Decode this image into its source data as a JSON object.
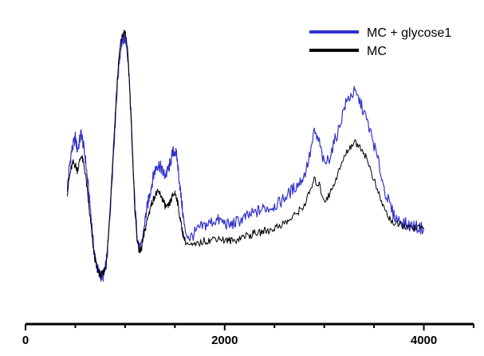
{
  "chart_data": {
    "type": "line",
    "x_ticks": [
      "0",
      "2000",
      "4000"
    ],
    "xlim": [
      0,
      4500
    ],
    "ylim": [
      0,
      1
    ],
    "grid": false,
    "legend_position": "top-right",
    "series": [
      {
        "name": "MC + glycose1",
        "color": "#3333cc",
        "x": [
          420,
          440,
          460,
          480,
          500,
          520,
          540,
          560,
          580,
          600,
          620,
          640,
          660,
          680,
          700,
          720,
          740,
          760,
          780,
          800,
          820,
          840,
          860,
          880,
          900,
          920,
          940,
          960,
          980,
          1000,
          1020,
          1040,
          1060,
          1080,
          1100,
          1120,
          1140,
          1160,
          1180,
          1200,
          1220,
          1240,
          1260,
          1280,
          1300,
          1320,
          1340,
          1360,
          1380,
          1400,
          1420,
          1440,
          1460,
          1480,
          1500,
          1520,
          1540,
          1560,
          1580,
          1600,
          1650,
          1700,
          1750,
          1800,
          1850,
          1900,
          1950,
          2000,
          2050,
          2100,
          2150,
          2200,
          2250,
          2300,
          2350,
          2400,
          2450,
          2500,
          2550,
          2600,
          2650,
          2700,
          2750,
          2800,
          2850,
          2900,
          2950,
          3000,
          3050,
          3100,
          3150,
          3200,
          3250,
          3300,
          3350,
          3400,
          3450,
          3500,
          3550,
          3600,
          3650,
          3700,
          3750,
          3800,
          3850,
          3900,
          3950,
          4000
        ],
        "y": [
          0.38,
          0.46,
          0.52,
          0.55,
          0.58,
          0.53,
          0.56,
          0.6,
          0.55,
          0.5,
          0.42,
          0.34,
          0.26,
          0.16,
          0.1,
          0.06,
          0.04,
          0.03,
          0.03,
          0.05,
          0.11,
          0.22,
          0.36,
          0.5,
          0.64,
          0.78,
          0.88,
          0.95,
          0.97,
          0.98,
          0.93,
          0.82,
          0.66,
          0.46,
          0.3,
          0.2,
          0.14,
          0.14,
          0.19,
          0.25,
          0.3,
          0.34,
          0.38,
          0.42,
          0.45,
          0.47,
          0.47,
          0.46,
          0.44,
          0.43,
          0.44,
          0.46,
          0.49,
          0.52,
          0.53,
          0.5,
          0.43,
          0.35,
          0.28,
          0.21,
          0.18,
          0.2,
          0.22,
          0.23,
          0.24,
          0.25,
          0.25,
          0.24,
          0.23,
          0.24,
          0.25,
          0.26,
          0.27,
          0.28,
          0.29,
          0.3,
          0.3,
          0.31,
          0.32,
          0.34,
          0.36,
          0.38,
          0.4,
          0.43,
          0.5,
          0.6,
          0.56,
          0.47,
          0.5,
          0.56,
          0.62,
          0.7,
          0.74,
          0.76,
          0.73,
          0.68,
          0.62,
          0.55,
          0.47,
          0.38,
          0.32,
          0.27,
          0.25,
          0.24,
          0.23,
          0.23,
          0.22,
          0.22
        ]
      },
      {
        "name": "MC",
        "color": "#000000",
        "x": [
          420,
          440,
          460,
          480,
          500,
          520,
          540,
          560,
          580,
          600,
          620,
          640,
          660,
          680,
          700,
          720,
          740,
          760,
          780,
          800,
          820,
          840,
          860,
          880,
          900,
          920,
          940,
          960,
          980,
          1000,
          1020,
          1040,
          1060,
          1080,
          1100,
          1120,
          1140,
          1160,
          1180,
          1200,
          1220,
          1240,
          1260,
          1280,
          1300,
          1320,
          1340,
          1360,
          1380,
          1400,
          1420,
          1440,
          1460,
          1480,
          1500,
          1520,
          1540,
          1560,
          1580,
          1600,
          1650,
          1700,
          1750,
          1800,
          1850,
          1900,
          1950,
          2000,
          2050,
          2100,
          2150,
          2200,
          2250,
          2300,
          2350,
          2400,
          2450,
          2500,
          2550,
          2600,
          2650,
          2700,
          2750,
          2800,
          2850,
          2900,
          2950,
          3000,
          3050,
          3100,
          3150,
          3200,
          3250,
          3300,
          3350,
          3400,
          3450,
          3500,
          3550,
          3600,
          3650,
          3700,
          3750,
          3800,
          3850,
          3900,
          3950,
          4000
        ],
        "y": [
          0.36,
          0.42,
          0.46,
          0.48,
          0.47,
          0.45,
          0.48,
          0.51,
          0.48,
          0.44,
          0.37,
          0.29,
          0.22,
          0.14,
          0.09,
          0.06,
          0.04,
          0.03,
          0.04,
          0.06,
          0.12,
          0.24,
          0.38,
          0.52,
          0.66,
          0.8,
          0.9,
          0.97,
          0.99,
          1.0,
          0.95,
          0.83,
          0.66,
          0.45,
          0.28,
          0.18,
          0.13,
          0.13,
          0.17,
          0.21,
          0.25,
          0.28,
          0.31,
          0.33,
          0.35,
          0.36,
          0.36,
          0.35,
          0.33,
          0.31,
          0.3,
          0.31,
          0.33,
          0.35,
          0.36,
          0.34,
          0.29,
          0.24,
          0.2,
          0.17,
          0.15,
          0.15,
          0.16,
          0.17,
          0.17,
          0.18,
          0.18,
          0.17,
          0.17,
          0.17,
          0.18,
          0.19,
          0.19,
          0.2,
          0.2,
          0.21,
          0.21,
          0.22,
          0.23,
          0.24,
          0.25,
          0.27,
          0.29,
          0.31,
          0.36,
          0.41,
          0.39,
          0.33,
          0.35,
          0.4,
          0.45,
          0.5,
          0.54,
          0.56,
          0.55,
          0.52,
          0.47,
          0.41,
          0.35,
          0.3,
          0.26,
          0.24,
          0.23,
          0.23,
          0.22,
          0.22,
          0.22,
          0.22
        ]
      }
    ]
  }
}
